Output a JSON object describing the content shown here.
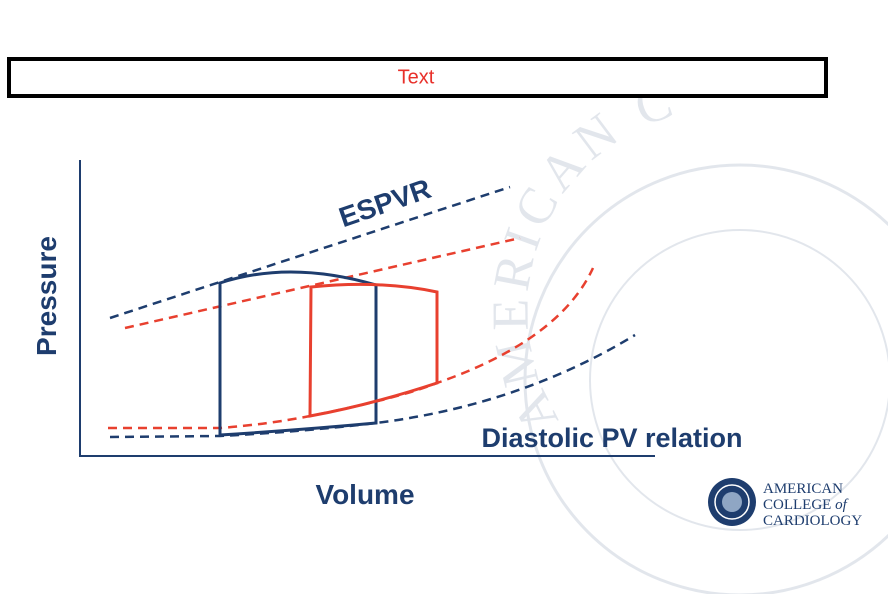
{
  "header": {
    "text": "Text"
  },
  "diagram": {
    "y_axis_label": "Pressure",
    "x_axis_label": "Volume",
    "espvr_label": "ESPVR",
    "edpvr_label": "Diastolic PV relation"
  },
  "watermark": {
    "text": "AMERICAN C"
  },
  "logo": {
    "line1": "AMERICAN",
    "line2": "COLLEGE",
    "line2_italic": "of",
    "line3": "CARDIOLOGY"
  }
}
